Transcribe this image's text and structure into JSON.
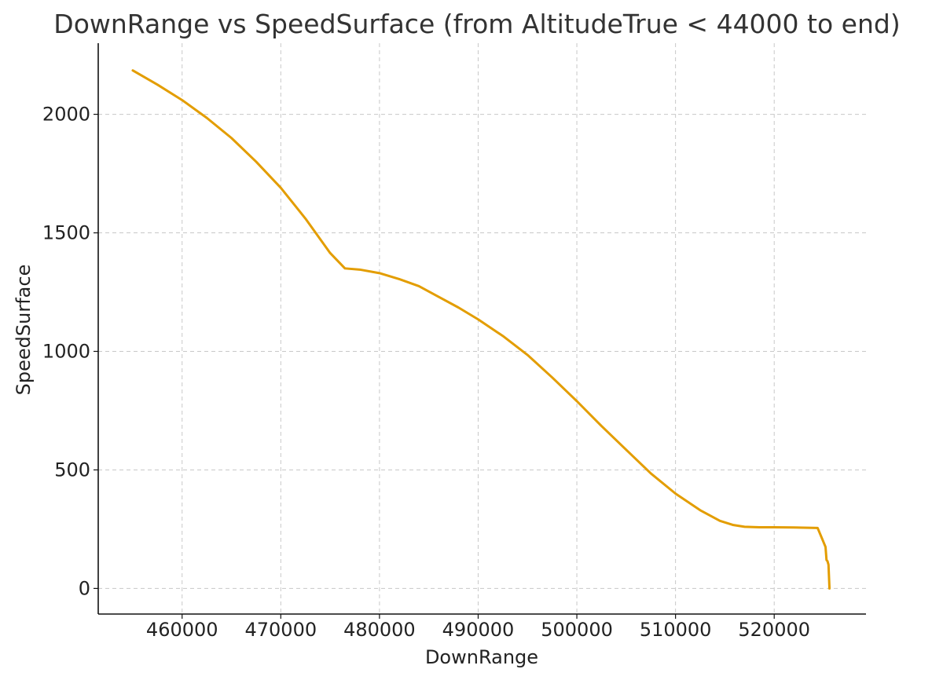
{
  "chart_data": {
    "type": "line",
    "title": "DownRange vs SpeedSurface (from AltitudeTrue < 44000 to end)",
    "xlabel": "DownRange",
    "ylabel": "SpeedSurface",
    "xlim": [
      451500,
      529300
    ],
    "ylim": [
      -108,
      2300
    ],
    "xticks": [
      460000,
      470000,
      480000,
      490000,
      500000,
      510000,
      520000
    ],
    "xtick_labels": [
      "460000",
      "470000",
      "480000",
      "490000",
      "500000",
      "510000",
      "520000"
    ],
    "yticks": [
      0,
      500,
      1000,
      1500,
      2000
    ],
    "ytick_labels": [
      "0",
      "500",
      "1000",
      "1500",
      "2000"
    ],
    "grid": true,
    "legend": "none",
    "series": [
      {
        "name": "SpeedSurface",
        "color": "#e39d00",
        "x": [
          455000,
          457500,
          460000,
          462500,
          465000,
          467500,
          470000,
          472500,
          475000,
          476500,
          478000,
          480000,
          482000,
          484000,
          486000,
          488000,
          490000,
          492500,
          495000,
          497500,
          500000,
          502500,
          505000,
          507500,
          510000,
          512500,
          514500,
          515800,
          517000,
          518500,
          520000,
          522000,
          524400,
          524800,
          525200,
          525300,
          525400,
          525500
        ],
        "y": [
          2185,
          2125,
          2060,
          1985,
          1900,
          1800,
          1690,
          1560,
          1415,
          1350,
          1345,
          1330,
          1305,
          1275,
          1230,
          1185,
          1135,
          1065,
          985,
          890,
          790,
          685,
          585,
          485,
          400,
          330,
          285,
          268,
          260,
          258,
          258,
          257,
          255,
          215,
          175,
          120,
          115,
          100
        ]
      }
    ],
    "tail": {
      "x": [
        525500,
        525600
      ],
      "y": [
        100,
        0
      ]
    }
  }
}
